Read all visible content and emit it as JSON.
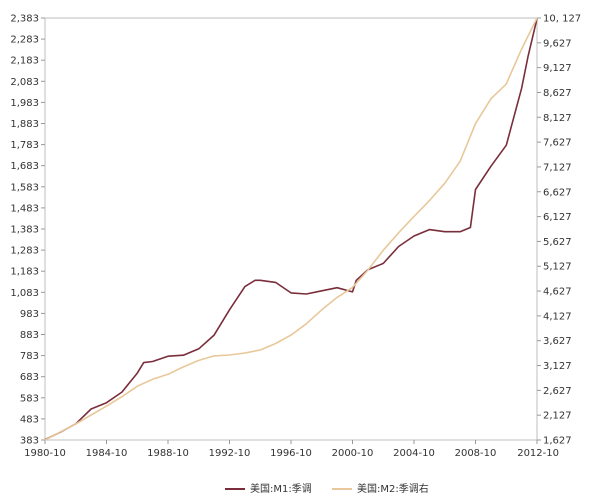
{
  "chart_data": {
    "type": "line",
    "grid": false,
    "legend_placement": "bottom-center",
    "x_ticks": [
      "1980-10",
      "1984-10",
      "1988-10",
      "1992-10",
      "1996-10",
      "2000-10",
      "2004-10",
      "2008-10",
      "2012-10"
    ],
    "x_range": [
      "1980-10",
      "2012-10"
    ],
    "y_left": {
      "range": [
        383,
        2383
      ],
      "tick_values": [
        383,
        483,
        583,
        683,
        783,
        883,
        983,
        1083,
        1183,
        1283,
        1383,
        1483,
        1583,
        1683,
        1783,
        1883,
        1983,
        2083,
        2183,
        2283,
        2383
      ],
      "tick_labels": [
        "383",
        "483",
        "583",
        "683",
        "783",
        "883",
        "983",
        "1,083",
        "1,183",
        "1,283",
        "1,383",
        "1,483",
        "1,583",
        "1,683",
        "1,783",
        "1,883",
        "1,983",
        "2,083",
        "2,183",
        "2,283",
        "2,383"
      ]
    },
    "y_right": {
      "range": [
        1627,
        10127
      ],
      "tick_values": [
        1627,
        2127,
        2627,
        3127,
        3627,
        4127,
        4627,
        5127,
        5627,
        6127,
        6627,
        7127,
        7627,
        8127,
        8627,
        9127,
        9627,
        10127
      ],
      "tick_labels": [
        "1,627",
        "2,127",
        "2,627",
        "3,127",
        "3,627",
        "4,127",
        "4,627",
        "5,127",
        "5,627",
        "6,127",
        "6,627",
        "7,127",
        "7,627",
        "8,127",
        "8,627",
        "9,127",
        "9,627",
        "10, 127"
      ]
    },
    "series": [
      {
        "name": "美国:M1:季调",
        "axis": "left",
        "color": "#7a2e3b",
        "x": [
          "1980-10",
          "1981-10",
          "1982-10",
          "1983-10",
          "1984-10",
          "1985-10",
          "1986-10",
          "1987-03",
          "1987-10",
          "1988-10",
          "1989-10",
          "1990-10",
          "1991-10",
          "1992-10",
          "1993-10",
          "1994-06",
          "1994-10",
          "1995-10",
          "1996-10",
          "1997-10",
          "1998-10",
          "1999-10",
          "2000-10",
          "2001-01",
          "2001-10",
          "2002-10",
          "2003-10",
          "2004-10",
          "2005-10",
          "2006-10",
          "2007-10",
          "2008-06",
          "2008-10",
          "2009-10",
          "2010-10",
          "2011-10",
          "2012-03",
          "2012-10"
        ],
        "values": [
          385,
          420,
          460,
          530,
          560,
          610,
          700,
          750,
          755,
          780,
          785,
          815,
          880,
          1000,
          1110,
          1140,
          1140,
          1130,
          1080,
          1075,
          1090,
          1105,
          1085,
          1140,
          1190,
          1220,
          1300,
          1350,
          1380,
          1370,
          1370,
          1390,
          1570,
          1680,
          1780,
          2050,
          2200,
          2380
        ]
      },
      {
        "name": "美国:M2:季调右",
        "axis": "right",
        "color": "#e8c89a",
        "x": [
          "1980-10",
          "1981-10",
          "1982-10",
          "1983-10",
          "1984-10",
          "1985-10",
          "1986-10",
          "1987-10",
          "1988-10",
          "1989-10",
          "1990-10",
          "1991-10",
          "1992-10",
          "1993-10",
          "1994-10",
          "1995-10",
          "1996-10",
          "1997-10",
          "1998-10",
          "1999-10",
          "2000-10",
          "2001-10",
          "2002-10",
          "2003-10",
          "2004-10",
          "2005-10",
          "2006-10",
          "2007-10",
          "2008-10",
          "2009-10",
          "2010-10",
          "2011-10",
          "2012-10"
        ],
        "values": [
          1627,
          1790,
          1950,
          2130,
          2310,
          2500,
          2710,
          2850,
          2950,
          3100,
          3230,
          3320,
          3340,
          3380,
          3440,
          3570,
          3740,
          3970,
          4250,
          4500,
          4700,
          5050,
          5450,
          5800,
          6130,
          6450,
          6800,
          7240,
          8000,
          8500,
          8800,
          9500,
          10127
        ]
      }
    ]
  }
}
